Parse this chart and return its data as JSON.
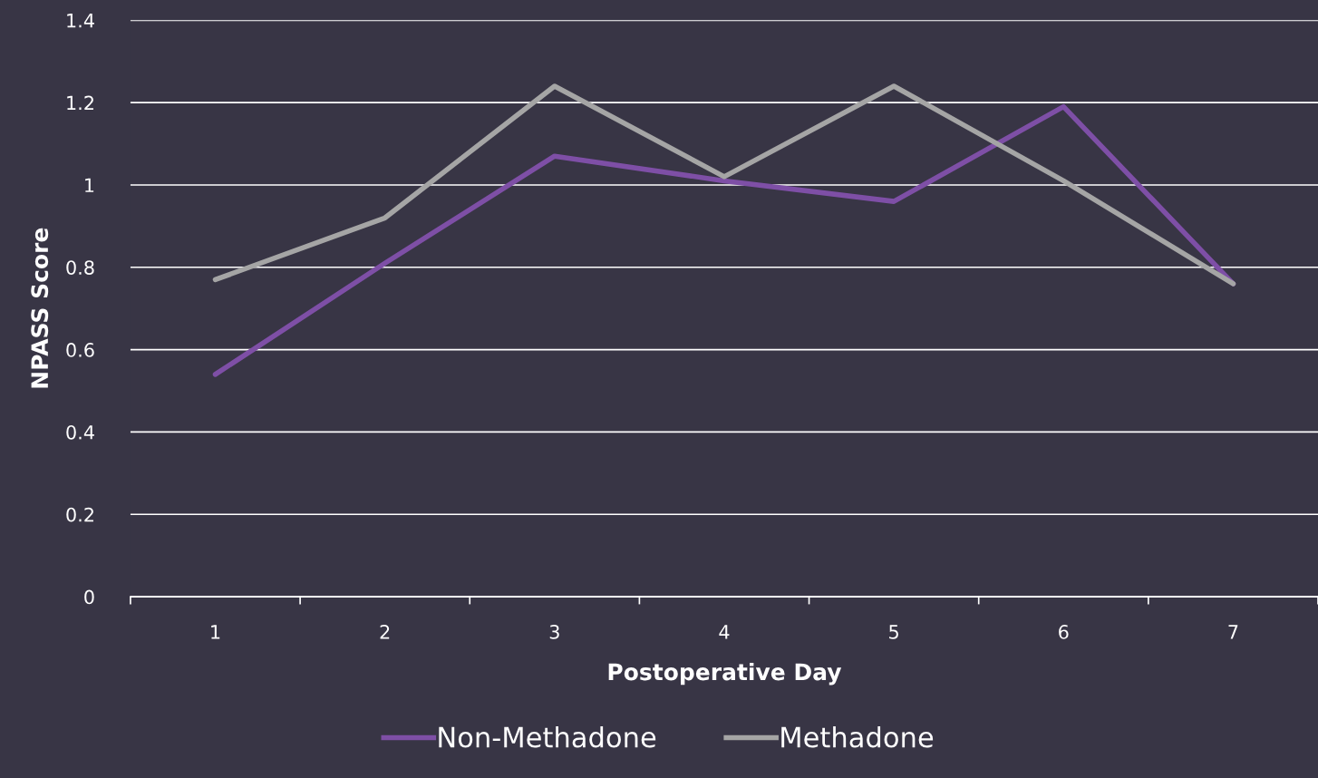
{
  "chart_data": {
    "type": "line",
    "xlabel": "Postoperative Day",
    "ylabel": "NPASS Score",
    "categories": [
      "1",
      "2",
      "3",
      "4",
      "5",
      "6",
      "7"
    ],
    "series": [
      {
        "name": "Non-Methadone",
        "color": "#7e4fa6",
        "values": [
          0.54,
          0.81,
          1.07,
          1.01,
          0.96,
          1.19,
          0.76
        ]
      },
      {
        "name": "Methadone",
        "color": "#a5a5a5",
        "values": [
          0.77,
          0.92,
          1.24,
          1.02,
          1.24,
          1.01,
          0.76
        ]
      }
    ],
    "ylim": [
      0,
      1.4
    ],
    "yticks": [
      0,
      0.2,
      0.4,
      0.6,
      0.8,
      1,
      1.2,
      1.4
    ],
    "grid": "y",
    "legend": "bottom",
    "marker": "none",
    "line_style": "solid"
  }
}
